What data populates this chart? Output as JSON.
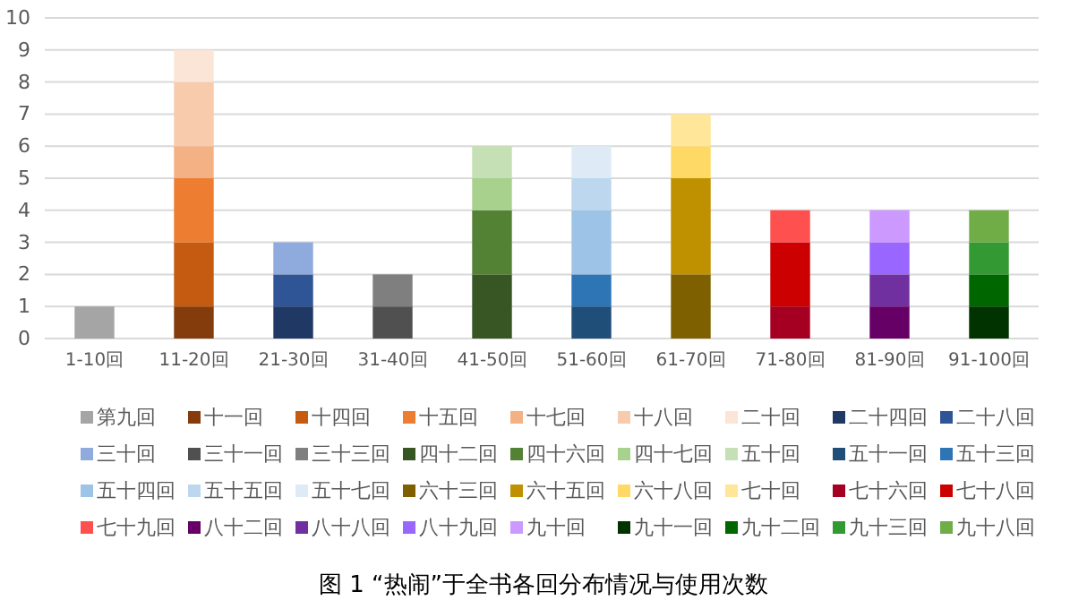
{
  "chart_data": {
    "type": "bar",
    "stacked": true,
    "title": "图 1 “热闹”于全书各回分布情况与使用次数",
    "categories": [
      "1-10回",
      "11-20回",
      "21-30回",
      "31-40回",
      "41-50回",
      "51-60回",
      "61-70回",
      "71-80回",
      "81-90回",
      "91-100回"
    ],
    "ylim": [
      0,
      10
    ],
    "yticks": [
      0,
      1,
      2,
      3,
      4,
      5,
      6,
      7,
      8,
      9,
      10
    ],
    "grid": "y",
    "legend": "bottom",
    "series": [
      {
        "name": "第九回",
        "color": "#a5a5a5",
        "values": [
          1,
          null,
          null,
          null,
          null,
          null,
          null,
          null,
          null,
          null
        ]
      },
      {
        "name": "十一回",
        "color": "#843c0c",
        "values": [
          null,
          1,
          null,
          null,
          null,
          null,
          null,
          null,
          null,
          null
        ]
      },
      {
        "name": "十四回",
        "color": "#c55a11",
        "values": [
          null,
          2,
          null,
          null,
          null,
          null,
          null,
          null,
          null,
          null
        ]
      },
      {
        "name": "十五回",
        "color": "#ed7d31",
        "values": [
          null,
          2,
          null,
          null,
          null,
          null,
          null,
          null,
          null,
          null
        ]
      },
      {
        "name": "十七回",
        "color": "#f4b183",
        "values": [
          null,
          1,
          null,
          null,
          null,
          null,
          null,
          null,
          null,
          null
        ]
      },
      {
        "name": "十八回",
        "color": "#f8cbad",
        "values": [
          null,
          2,
          null,
          null,
          null,
          null,
          null,
          null,
          null,
          null
        ]
      },
      {
        "name": "二十回",
        "color": "#fbe5d6",
        "values": [
          null,
          1,
          null,
          null,
          null,
          null,
          null,
          null,
          null,
          null
        ]
      },
      {
        "name": "二十四回",
        "color": "#203864",
        "values": [
          null,
          null,
          1,
          null,
          null,
          null,
          null,
          null,
          null,
          null
        ]
      },
      {
        "name": "二十八回",
        "color": "#2f5597",
        "values": [
          null,
          null,
          1,
          null,
          null,
          null,
          null,
          null,
          null,
          null
        ]
      },
      {
        "name": "三十回",
        "color": "#8faadc",
        "values": [
          null,
          null,
          1,
          null,
          null,
          null,
          null,
          null,
          null,
          null
        ]
      },
      {
        "name": "三十一回",
        "color": "#505050",
        "values": [
          null,
          null,
          null,
          1,
          null,
          null,
          null,
          null,
          null,
          null
        ]
      },
      {
        "name": "三十三回",
        "color": "#7f7f7f",
        "values": [
          null,
          null,
          null,
          1,
          null,
          null,
          null,
          null,
          null,
          null
        ]
      },
      {
        "name": "四十二回",
        "color": "#375623",
        "values": [
          null,
          null,
          null,
          null,
          2,
          null,
          null,
          null,
          null,
          null
        ]
      },
      {
        "name": "四十六回",
        "color": "#548235",
        "values": [
          null,
          null,
          null,
          null,
          2,
          null,
          null,
          null,
          null,
          null
        ]
      },
      {
        "name": "四十七回",
        "color": "#a9d18e",
        "values": [
          null,
          null,
          null,
          null,
          1,
          null,
          null,
          null,
          null,
          null
        ]
      },
      {
        "name": "五十回",
        "color": "#c5e0b4",
        "values": [
          null,
          null,
          null,
          null,
          1,
          null,
          null,
          null,
          null,
          null
        ]
      },
      {
        "name": "五十一回",
        "color": "#1f4e79",
        "values": [
          null,
          null,
          null,
          null,
          null,
          1,
          null,
          null,
          null,
          null
        ]
      },
      {
        "name": "五十三回",
        "color": "#2e75b6",
        "values": [
          null,
          null,
          null,
          null,
          null,
          1,
          null,
          null,
          null,
          null
        ]
      },
      {
        "name": "五十四回",
        "color": "#9dc3e6",
        "values": [
          null,
          null,
          null,
          null,
          null,
          2,
          null,
          null,
          null,
          null
        ]
      },
      {
        "name": "五十五回",
        "color": "#bdd7ee",
        "values": [
          null,
          null,
          null,
          null,
          null,
          1,
          null,
          null,
          null,
          null
        ]
      },
      {
        "name": "五十七回",
        "color": "#deebf7",
        "values": [
          null,
          null,
          null,
          null,
          null,
          1,
          null,
          null,
          null,
          null
        ]
      },
      {
        "name": "六十三回",
        "color": "#7f6000",
        "values": [
          null,
          null,
          null,
          null,
          null,
          null,
          2,
          null,
          null,
          null
        ]
      },
      {
        "name": "六十五回",
        "color": "#bf9000",
        "values": [
          null,
          null,
          null,
          null,
          null,
          null,
          3,
          null,
          null,
          null
        ]
      },
      {
        "name": "六十八回",
        "color": "#ffd966",
        "values": [
          null,
          null,
          null,
          null,
          null,
          null,
          1,
          null,
          null,
          null
        ]
      },
      {
        "name": "七十回",
        "color": "#ffe699",
        "values": [
          null,
          null,
          null,
          null,
          null,
          null,
          1,
          null,
          null,
          null
        ]
      },
      {
        "name": "七十六回",
        "color": "#a50021",
        "values": [
          null,
          null,
          null,
          null,
          null,
          null,
          null,
          1,
          null,
          null
        ]
      },
      {
        "name": "七十八回",
        "color": "#cc0000",
        "values": [
          null,
          null,
          null,
          null,
          null,
          null,
          null,
          2,
          null,
          null
        ]
      },
      {
        "name": "七十九回",
        "color": "#ff5050",
        "values": [
          null,
          null,
          null,
          null,
          null,
          null,
          null,
          1,
          null,
          null
        ]
      },
      {
        "name": "八十二回",
        "color": "#660066",
        "values": [
          null,
          null,
          null,
          null,
          null,
          null,
          null,
          null,
          1,
          null
        ]
      },
      {
        "name": "八十八回",
        "color": "#7030a0",
        "values": [
          null,
          null,
          null,
          null,
          null,
          null,
          null,
          null,
          1,
          null
        ]
      },
      {
        "name": "八十九回",
        "color": "#9966ff",
        "values": [
          null,
          null,
          null,
          null,
          null,
          null,
          null,
          null,
          1,
          null
        ]
      },
      {
        "name": "九十回",
        "color": "#cc99ff",
        "values": [
          null,
          null,
          null,
          null,
          null,
          null,
          null,
          null,
          1,
          null
        ]
      },
      {
        "name": "九十一回",
        "color": "#003300",
        "values": [
          null,
          null,
          null,
          null,
          null,
          null,
          null,
          null,
          null,
          1
        ]
      },
      {
        "name": "九十二回",
        "color": "#006600",
        "values": [
          null,
          null,
          null,
          null,
          null,
          null,
          null,
          null,
          null,
          1
        ]
      },
      {
        "name": "九十三回",
        "color": "#339933",
        "values": [
          null,
          null,
          null,
          null,
          null,
          null,
          null,
          null,
          null,
          1
        ]
      },
      {
        "name": "九十八回",
        "color": "#70ad47",
        "values": [
          null,
          null,
          null,
          null,
          null,
          null,
          null,
          null,
          null,
          1
        ]
      }
    ]
  }
}
